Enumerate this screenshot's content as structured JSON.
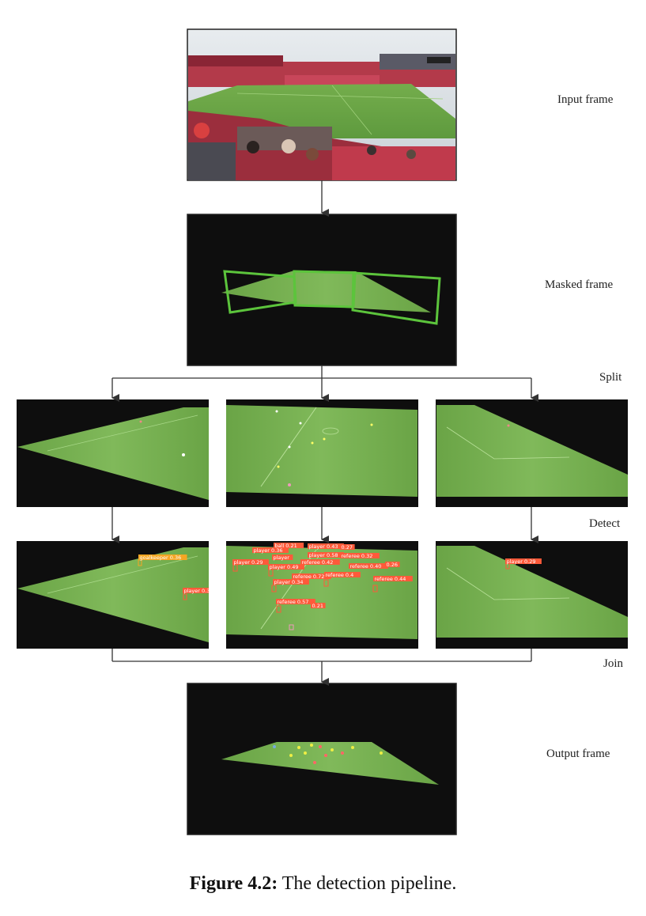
{
  "stages": {
    "input": "Input frame",
    "masked": "Masked frame",
    "split": "Split",
    "detect": "Detect",
    "join": "Join",
    "output": "Output frame"
  },
  "detections": {
    "left": [
      "goalkeeper 0.36",
      "player 0.3"
    ],
    "center": [
      "ball 0.21",
      "player 0.36",
      "player 0.43",
      "0.27",
      "player 0.29",
      "player",
      "player 0.58",
      "referee 0.32",
      "player 0.49",
      "referee 0.42",
      "referee 0.40",
      "0.26",
      "player 0.34",
      "referee 0.72",
      "referee 0.4",
      "referee 0.44",
      "referee 0.57",
      "0.21"
    ],
    "right": [
      "player 0.29"
    ]
  },
  "caption": {
    "label": "Figure 4.2:",
    "text": " The detection pipeline."
  },
  "colors": {
    "frame_bg": "#0e0e0e",
    "pitch": "#6fa84a",
    "pitch_light": "#86bd5c",
    "mask_box": "#5cc43c",
    "det_box": "#ff5a3a",
    "det_goalkeeper": "#f5a623",
    "arrow": "#333333"
  },
  "icons": [
    "down-arrow-icon"
  ]
}
